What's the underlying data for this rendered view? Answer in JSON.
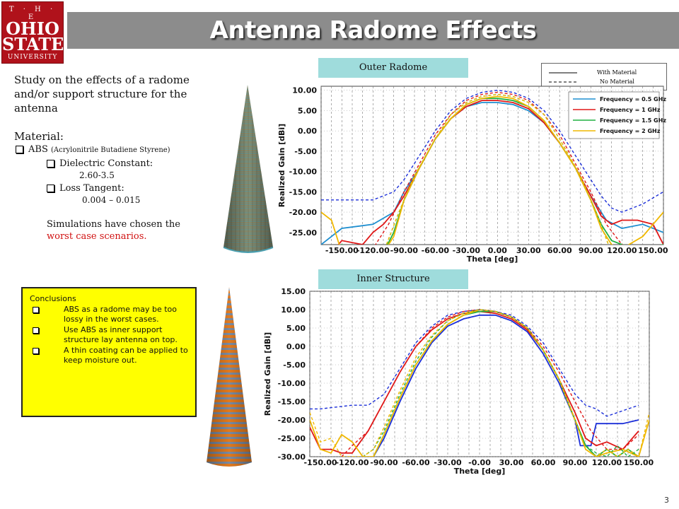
{
  "slide": {
    "title": "Antenna Radome Effects",
    "page_number": "3",
    "logo": {
      "line1": "T · H · E",
      "line2": "OHIO",
      "line3": "STATE",
      "line4": "UNIVERSITY"
    },
    "intro": "Study on the effects of a radome and/or support  structure for the antenna",
    "material_heading": "Material:",
    "material_name": "ABS ",
    "material_full": "(Acrylonitrile Butadiene Styrene)",
    "dielectric_label": "Dielectric Constant:",
    "dielectric_value": "2.60-3.5",
    "loss_label": "Loss Tangent:",
    "loss_value": "0.004 – 0.015",
    "sim_note_1": "Simulations have chosen the",
    "sim_note_2": "worst case scenarios.",
    "conclusions": {
      "heading": "Conclusions",
      "items": [
        "ABS as a radome may be too lossy in the worst cases.",
        "Use ABS as inner support structure lay antenna on top.",
        "A thin coating can be applied to keep moisture out."
      ]
    },
    "top_panel_label": "Outer Radome",
    "bottom_panel_label": "Inner Structure",
    "line_style_legend": {
      "solid": "With Material",
      "dashed": "No Material"
    },
    "colors": {
      "accent": "#b0121b",
      "header": "#8c8c8c",
      "panel_label": "#9fdcdc",
      "conclusions_bg": "#ffff00"
    }
  },
  "chart_data": [
    {
      "type": "line",
      "name": "Outer Radome",
      "xlabel": "Theta [deg]",
      "ylabel": "Realized Gain [dBi]",
      "xlim": [
        -170,
        160
      ],
      "ylim": [
        -28,
        11
      ],
      "xticks": [
        -150,
        -120,
        -90,
        -60,
        -30,
        0,
        30,
        60,
        90,
        120,
        150
      ],
      "xtick_labels": [
        "-150.00",
        "-120.00",
        "-90.00",
        "-60.00",
        "-30.00",
        "0.00",
        "30.00",
        "60.00",
        "90.00",
        "120.00",
        "150.00"
      ],
      "yticks": [
        10,
        5,
        0,
        -5,
        -10,
        -15,
        -20,
        -25
      ],
      "ytick_labels": [
        "10.00",
        "5.00",
        "0.00",
        "-5.00",
        "-10.00",
        "-15.00",
        "-20.00",
        "-25.00"
      ],
      "grid": true,
      "legend": [
        "Frequency = 0.5 GHz",
        "Frequency = 1 GHz",
        "Frequency = 1.5 GHz",
        "Frequency = 2 GHz"
      ],
      "legend_position": "top-right",
      "series": [
        {
          "name": "Frequency = 0.5 GHz",
          "color": "#1f8fd0",
          "style": "solid",
          "x": [
            -170,
            -150,
            -120,
            -100,
            -90,
            -75,
            -60,
            -45,
            -30,
            -15,
            0,
            15,
            30,
            45,
            60,
            75,
            90,
            105,
            120,
            140,
            160
          ],
          "y": [
            -28,
            -24,
            -23,
            -20,
            -15,
            -9,
            -2,
            3,
            6,
            7,
            7,
            6.5,
            5,
            2,
            -3,
            -9,
            -16,
            -22,
            -24,
            -23,
            -25
          ]
        },
        {
          "name": "Frequency = 1 GHz",
          "color": "#e01818",
          "style": "solid",
          "x": [
            -160,
            -150,
            -130,
            -120,
            -110,
            -100,
            -90,
            -75,
            -60,
            -45,
            -30,
            -15,
            0,
            15,
            30,
            45,
            60,
            75,
            90,
            100,
            110,
            120,
            135,
            150,
            160
          ],
          "y": [
            -30,
            -27,
            -28,
            -25,
            -23,
            -20,
            -16,
            -9,
            -2,
            3,
            6,
            7.5,
            7.5,
            7,
            5.5,
            2,
            -3,
            -9,
            -16,
            -21,
            -23,
            -22,
            -22,
            -23,
            -28
          ]
        },
        {
          "name": "Frequency = 1.5 GHz",
          "color": "#20b040",
          "style": "solid",
          "x": [
            -160,
            -150,
            -130,
            -110,
            -100,
            -90,
            -75,
            -60,
            -45,
            -30,
            -15,
            0,
            15,
            30,
            45,
            60,
            75,
            90,
            100,
            110,
            120,
            140,
            160
          ],
          "y": [
            -30,
            -28,
            -30,
            -30,
            -25,
            -17,
            -9,
            -2,
            3,
            6.5,
            8,
            8,
            7.5,
            6,
            2.5,
            -3,
            -9,
            -17,
            -23,
            -27,
            -28,
            -29,
            -28
          ]
        },
        {
          "name": "Frequency = 2 GHz",
          "color": "#f0b800",
          "style": "solid",
          "x": [
            -170,
            -160,
            -150,
            -130,
            -110,
            -100,
            -90,
            -75,
            -60,
            -45,
            -30,
            -15,
            0,
            15,
            30,
            45,
            60,
            75,
            90,
            100,
            110,
            120,
            140,
            160
          ],
          "y": [
            -20,
            -22,
            -30,
            -30,
            -30,
            -26,
            -17,
            -9,
            -2,
            3,
            6.5,
            8,
            8.5,
            8,
            6,
            2.5,
            -3,
            -9,
            -17,
            -24,
            -28,
            -29,
            -26,
            -20
          ]
        },
        {
          "name": "0.5 GHz (no material)",
          "color": "#1c2fd8",
          "style": "dashed",
          "x": [
            -170,
            -160,
            -140,
            -120,
            -100,
            -90,
            -75,
            -60,
            -45,
            -30,
            -15,
            0,
            15,
            30,
            45,
            60,
            75,
            90,
            100,
            110,
            120,
            140,
            160
          ],
          "y": [
            -17,
            -17,
            -17,
            -17,
            -15,
            -12,
            -6,
            0,
            5,
            8,
            9.5,
            10,
            9.5,
            8,
            5,
            0,
            -6,
            -12,
            -16,
            -19,
            -20,
            -18,
            -15
          ]
        },
        {
          "name": "1 GHz (no material)",
          "color": "#e01818",
          "style": "dashed",
          "x": [
            -150,
            -120,
            -105,
            -90,
            -75,
            -60,
            -45,
            -30,
            -15,
            0,
            15,
            30,
            45,
            60,
            75,
            90,
            105,
            120,
            150
          ],
          "y": [
            -30,
            -29,
            -23,
            -15,
            -8,
            -1,
            4,
            7.5,
            9,
            9.5,
            9,
            7.5,
            4,
            -1,
            -8,
            -15,
            -23,
            -28,
            -30
          ]
        },
        {
          "name": "1.5 GHz (no material)",
          "color": "#20b040",
          "style": "dashed",
          "x": [
            -130,
            -110,
            -95,
            -80,
            -60,
            -45,
            -30,
            -15,
            0,
            15,
            30,
            45,
            60,
            80,
            95,
            110,
            130
          ],
          "y": [
            -30,
            -30,
            -20,
            -11,
            -2,
            4,
            7,
            8.5,
            9,
            8.5,
            7,
            4,
            -2,
            -11,
            -20,
            -30,
            -30
          ]
        },
        {
          "name": "2 GHz (no material)",
          "color": "#f0b800",
          "style": "dashed",
          "x": [
            -130,
            -110,
            -95,
            -80,
            -60,
            -45,
            -30,
            -15,
            0,
            15,
            30,
            45,
            60,
            80,
            95,
            110,
            130
          ],
          "y": [
            -30,
            -30,
            -20,
            -11,
            -2,
            4,
            7,
            8.5,
            9,
            8.5,
            7,
            4,
            -2,
            -11,
            -20,
            -30,
            -30
          ]
        }
      ]
    },
    {
      "type": "line",
      "name": "Inner Structure",
      "xlabel": "Theta [deg]",
      "ylabel": "Realized Gain [dBi]",
      "xlim": [
        -160,
        160
      ],
      "ylim": [
        -30,
        15
      ],
      "xticks": [
        -150,
        -120,
        -90,
        -60,
        -30,
        0,
        30,
        60,
        90,
        120,
        150
      ],
      "xtick_labels": [
        "-150.00",
        "-120.00",
        "-90.00",
        "-60.00",
        "-30.00",
        "-0.00",
        "30.00",
        "60.00",
        "90.00",
        "120.00",
        "150.00"
      ],
      "yticks": [
        15,
        10,
        5,
        0,
        -5,
        -10,
        -15,
        -20,
        -25,
        -30
      ],
      "ytick_labels": [
        "15.00",
        "10.00",
        "5.00",
        "0.00",
        "-5.00",
        "-10.00",
        "-15.00",
        "-20.00",
        "-25.00",
        "-30.00"
      ],
      "grid": true,
      "series": [
        {
          "name": "Frequency = 0.5 GHz",
          "color": "#1c2fd8",
          "style": "solid",
          "x": [
            -100,
            -90,
            -75,
            -60,
            -45,
            -30,
            -15,
            0,
            15,
            30,
            45,
            60,
            75,
            90,
            95,
            105,
            110,
            120,
            135,
            150
          ],
          "y": [
            -30,
            -25,
            -15,
            -6,
            1,
            5.5,
            7.5,
            8.5,
            8.5,
            7,
            4,
            -2,
            -10,
            -20,
            -27,
            -27,
            -21,
            -21,
            -21,
            -20
          ]
        },
        {
          "name": "Frequency = 1 GHz",
          "color": "#e01818",
          "style": "solid",
          "x": [
            -160,
            -150,
            -140,
            -130,
            -120,
            -105,
            -90,
            -75,
            -60,
            -45,
            -30,
            -15,
            0,
            15,
            30,
            45,
            60,
            75,
            90,
            100,
            110,
            120,
            135,
            150
          ],
          "y": [
            -22,
            -28,
            -28,
            -29,
            -29,
            -23,
            -15,
            -7,
            0,
            4.5,
            7.5,
            9,
            9.5,
            9,
            7.5,
            4.5,
            -1,
            -9,
            -18,
            -25,
            -27,
            -26,
            -28,
            -23
          ]
        },
        {
          "name": "Frequency = 1.5 GHz",
          "color": "#20b040",
          "style": "solid",
          "x": [
            -100,
            -90,
            -75,
            -60,
            -45,
            -30,
            -15,
            0,
            15,
            30,
            45,
            60,
            75,
            90,
            100,
            110,
            120,
            130,
            140,
            150
          ],
          "y": [
            -30,
            -24,
            -14,
            -5,
            1.5,
            6,
            8.5,
            9.5,
            9.5,
            8,
            5,
            -1,
            -9,
            -20,
            -27,
            -30,
            -28,
            -30,
            -28,
            -30
          ]
        },
        {
          "name": "Frequency = 2 GHz",
          "color": "#f0b800",
          "style": "solid",
          "x": [
            -160,
            -150,
            -140,
            -130,
            -120,
            -110,
            -100,
            -90,
            -75,
            -60,
            -45,
            -30,
            -15,
            0,
            15,
            30,
            45,
            60,
            75,
            90,
            100,
            110,
            120,
            135,
            150,
            160
          ],
          "y": [
            -20,
            -28,
            -29,
            -24,
            -26,
            -30,
            -30,
            -24,
            -14,
            -5,
            1.5,
            6,
            8.5,
            10,
            9.5,
            8,
            5,
            -1,
            -9,
            -20,
            -28,
            -30,
            -29,
            -28,
            -30,
            -20
          ]
        },
        {
          "name": "0.5 GHz (no material)",
          "color": "#1c2fd8",
          "style": "dashed",
          "x": [
            -160,
            -150,
            -135,
            -120,
            -105,
            -90,
            -75,
            -60,
            -45,
            -30,
            -15,
            0,
            15,
            30,
            45,
            60,
            75,
            90,
            100,
            110,
            120,
            135,
            150
          ],
          "y": [
            -17,
            -17,
            -16.5,
            -16,
            -16,
            -13,
            -6,
            1,
            5.5,
            8.5,
            9.5,
            10,
            9.5,
            8.5,
            5.5,
            1,
            -6,
            -13,
            -16,
            -17,
            -19,
            -17.5,
            -16
          ]
        },
        {
          "name": "1 GHz (no material)",
          "color": "#e01818",
          "style": "dashed",
          "x": [
            -130,
            -120,
            -105,
            -90,
            -75,
            -60,
            -45,
            -30,
            -15,
            0,
            15,
            30,
            45,
            60,
            75,
            90,
            105,
            120,
            135,
            150
          ],
          "y": [
            -30,
            -27,
            -23,
            -15,
            -7,
            0,
            5,
            8,
            9.5,
            10,
            9.5,
            8,
            5,
            0,
            -7,
            -15,
            -23,
            -28,
            -28,
            -24
          ]
        },
        {
          "name": "1.5 GHz (no material)",
          "color": "#20b040",
          "style": "dashed",
          "x": [
            -110,
            -100,
            -90,
            -75,
            -60,
            -45,
            -30,
            -15,
            0,
            15,
            30,
            45,
            60,
            75,
            90,
            100,
            110,
            120,
            130,
            140,
            150
          ],
          "y": [
            -30,
            -28,
            -23,
            -13,
            -4,
            2.5,
            7,
            9,
            10,
            9.5,
            8,
            5,
            -1,
            -9,
            -20,
            -27,
            -29,
            -30,
            -27,
            -30,
            -28
          ]
        },
        {
          "name": "2 GHz (no material)",
          "color": "#f0b800",
          "style": "dashed",
          "x": [
            -160,
            -150,
            -140,
            -130,
            -110,
            -100,
            -90,
            -75,
            -60,
            -45,
            -30,
            -15,
            0,
            15,
            30,
            45,
            60,
            75,
            90,
            100,
            110,
            120,
            130,
            140,
            150,
            160
          ],
          "y": [
            -18,
            -26,
            -25,
            -30,
            -30,
            -28,
            -22,
            -12,
            -3,
            3,
            7,
            9,
            10,
            9.5,
            8,
            5,
            -1,
            -9,
            -20,
            -28,
            -30,
            -28,
            -30,
            -28,
            -30,
            -18
          ]
        }
      ]
    }
  ]
}
